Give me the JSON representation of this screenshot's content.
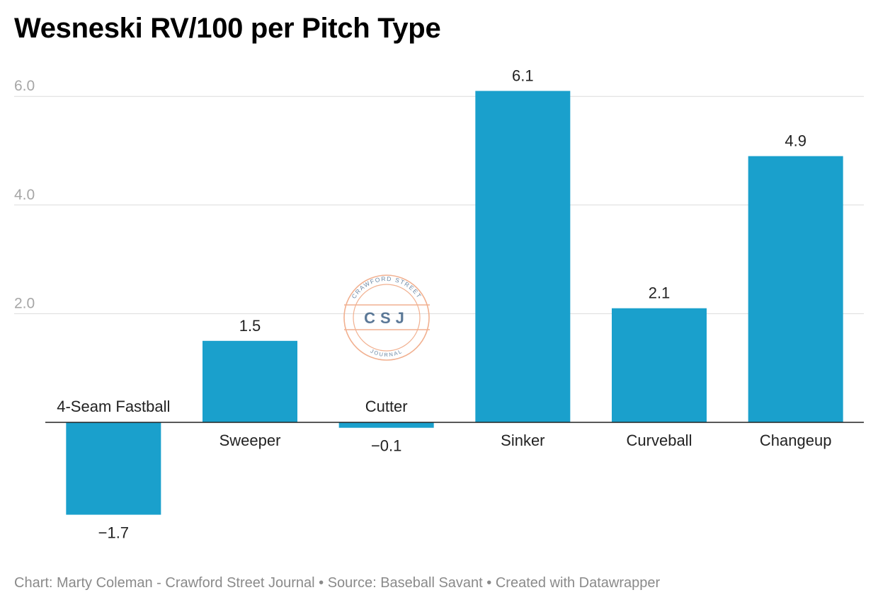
{
  "chart_data": {
    "type": "bar",
    "title": "Wesneski RV/100 per Pitch Type",
    "categories": [
      "4-Seam Fastball",
      "Sweeper",
      "Cutter",
      "Sinker",
      "Curveball",
      "Changeup"
    ],
    "values": [
      -1.7,
      1.5,
      -0.1,
      6.1,
      2.1,
      4.9
    ],
    "value_labels": [
      "−1.7",
      "1.5",
      "−0.1",
      "6.1",
      "2.1",
      "4.9"
    ],
    "y_ticks": [
      2.0,
      4.0,
      6.0
    ],
    "y_tick_labels": [
      "2.0",
      "4.0",
      "6.0"
    ],
    "ylim": [
      -1.7,
      6.1
    ],
    "grid": true,
    "bar_color": "#1aa0cc",
    "xlabel": "",
    "ylabel": ""
  },
  "watermark": {
    "top_text": "CRAWFORD STREET",
    "center_text": "CSJ",
    "bottom_text": "JOURNAL",
    "color": "#f0a884"
  },
  "footer": {
    "text": "Chart: Marty Coleman - Crawford Street Journal • Source: Baseball Savant • Created with Datawrapper"
  }
}
